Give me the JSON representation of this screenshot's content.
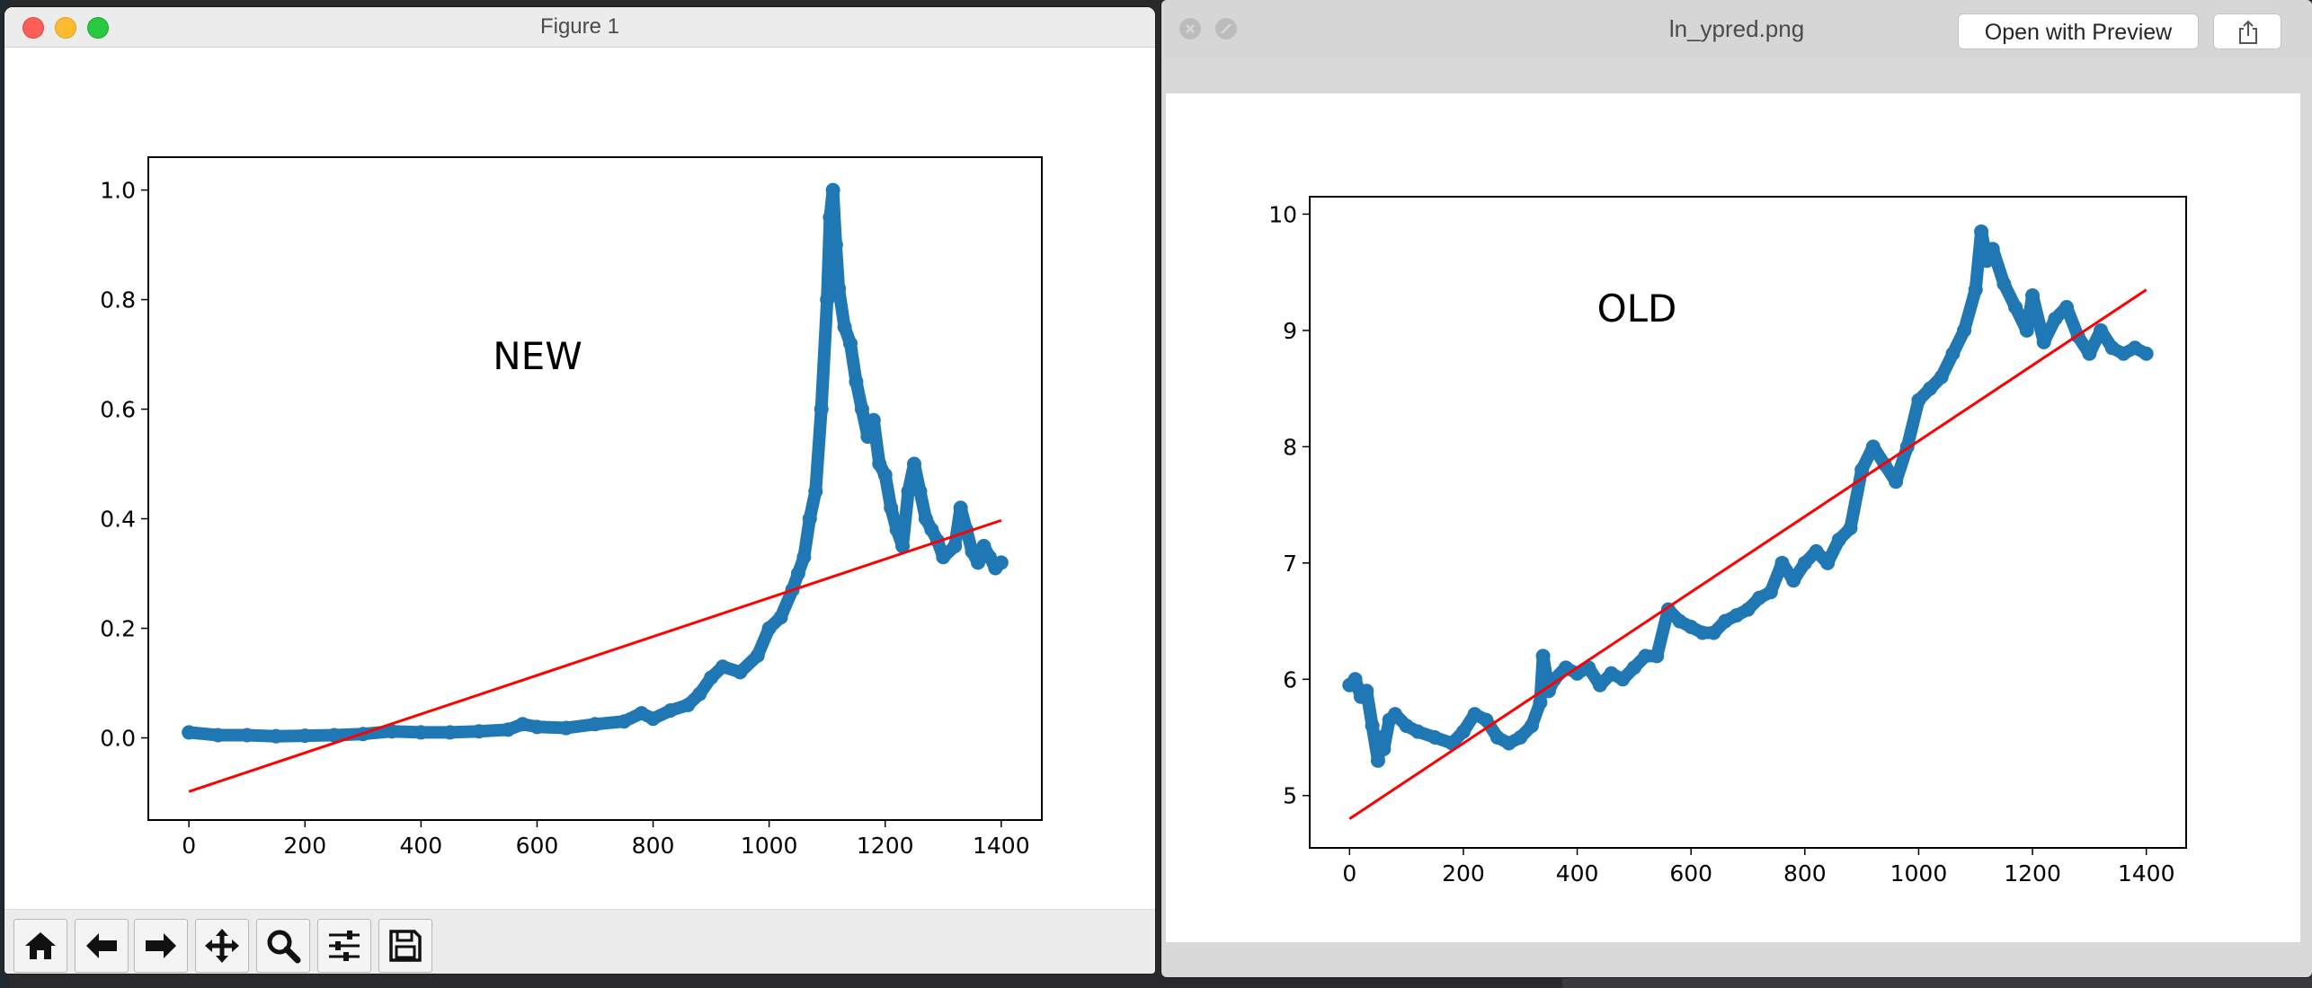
{
  "figure_window": {
    "title": "Figure 1",
    "toolbar": [
      {
        "name": "home-icon"
      },
      {
        "name": "back-arrow-icon"
      },
      {
        "name": "forward-arrow-icon"
      },
      {
        "name": "pan-icon"
      },
      {
        "name": "zoom-icon"
      },
      {
        "name": "subplots-icon"
      },
      {
        "name": "save-icon"
      }
    ]
  },
  "preview_window": {
    "title": "ln_ypred.png",
    "open_button": "Open with Preview",
    "share_icon": "share-icon"
  },
  "chart_data": [
    {
      "type": "scatter",
      "annotation": "NEW",
      "title": "",
      "xlabel": "",
      "ylabel": "",
      "xlim": [
        -70,
        1470
      ],
      "ylim": [
        -0.15,
        1.06
      ],
      "xticks": [
        0,
        200,
        400,
        600,
        800,
        1000,
        1200,
        1400
      ],
      "yticks": [
        0.0,
        0.2,
        0.4,
        0.6,
        0.8,
        1.0
      ],
      "xtick_labels": [
        "0",
        "200",
        "400",
        "600",
        "800",
        "1000",
        "1200",
        "1400"
      ],
      "ytick_labels": [
        "0.0",
        "0.2",
        "0.4",
        "0.6",
        "0.8",
        "1.0"
      ],
      "grid": false,
      "series": [
        {
          "kind": "scatter",
          "color": "#1f77b4",
          "x": [
            0,
            50,
            100,
            150,
            200,
            250,
            300,
            350,
            400,
            450,
            500,
            550,
            575,
            600,
            650,
            700,
            750,
            780,
            800,
            830,
            860,
            880,
            900,
            920,
            950,
            980,
            1000,
            1020,
            1040,
            1050,
            1060,
            1070,
            1080,
            1090,
            1100,
            1105,
            1110,
            1115,
            1120,
            1130,
            1140,
            1150,
            1160,
            1170,
            1180,
            1190,
            1200,
            1210,
            1220,
            1230,
            1240,
            1250,
            1260,
            1270,
            1280,
            1290,
            1300,
            1320,
            1330,
            1340,
            1350,
            1360,
            1370,
            1380,
            1390,
            1400
          ],
          "y": [
            0.01,
            0.005,
            0.005,
            0.003,
            0.004,
            0.005,
            0.007,
            0.012,
            0.01,
            0.01,
            0.012,
            0.015,
            0.025,
            0.02,
            0.018,
            0.025,
            0.03,
            0.045,
            0.035,
            0.05,
            0.06,
            0.08,
            0.11,
            0.13,
            0.12,
            0.15,
            0.2,
            0.22,
            0.27,
            0.3,
            0.33,
            0.4,
            0.45,
            0.6,
            0.8,
            0.95,
            1.0,
            0.9,
            0.82,
            0.75,
            0.72,
            0.65,
            0.6,
            0.55,
            0.58,
            0.5,
            0.48,
            0.42,
            0.38,
            0.35,
            0.45,
            0.5,
            0.45,
            0.4,
            0.38,
            0.36,
            0.33,
            0.35,
            0.42,
            0.38,
            0.34,
            0.32,
            0.35,
            0.33,
            0.31,
            0.32
          ]
        },
        {
          "kind": "line",
          "color": "#ff0000",
          "x": [
            0,
            1400
          ],
          "y": [
            -0.098,
            0.397
          ]
        }
      ]
    },
    {
      "type": "scatter",
      "annotation": "OLD",
      "title": "",
      "xlabel": "",
      "ylabel": "",
      "xlim": [
        -70,
        1470
      ],
      "ylim": [
        4.55,
        10.15
      ],
      "xticks": [
        0,
        200,
        400,
        600,
        800,
        1000,
        1200,
        1400
      ],
      "yticks": [
        5,
        6,
        7,
        8,
        9,
        10
      ],
      "xtick_labels": [
        "0",
        "200",
        "400",
        "600",
        "800",
        "1000",
        "1200",
        "1400"
      ],
      "ytick_labels": [
        "5",
        "6",
        "7",
        "8",
        "9",
        "10"
      ],
      "grid": false,
      "series": [
        {
          "kind": "scatter",
          "color": "#1f77b4",
          "x": [
            0,
            10,
            20,
            30,
            40,
            50,
            55,
            60,
            70,
            80,
            100,
            120,
            150,
            180,
            200,
            220,
            240,
            260,
            280,
            300,
            320,
            335,
            340,
            350,
            360,
            380,
            400,
            420,
            440,
            460,
            480,
            500,
            520,
            540,
            560,
            580,
            600,
            620,
            640,
            660,
            680,
            700,
            720,
            740,
            760,
            780,
            800,
            820,
            840,
            860,
            880,
            900,
            920,
            940,
            960,
            980,
            1000,
            1020,
            1040,
            1060,
            1080,
            1100,
            1110,
            1120,
            1130,
            1150,
            1170,
            1190,
            1200,
            1220,
            1240,
            1260,
            1280,
            1300,
            1320,
            1340,
            1360,
            1380,
            1400
          ],
          "y": [
            5.95,
            6.0,
            5.85,
            5.9,
            5.6,
            5.3,
            5.5,
            5.4,
            5.65,
            5.7,
            5.6,
            5.55,
            5.5,
            5.45,
            5.55,
            5.7,
            5.65,
            5.5,
            5.45,
            5.5,
            5.6,
            5.8,
            6.2,
            5.9,
            6.0,
            6.1,
            6.05,
            6.1,
            5.95,
            6.05,
            6.0,
            6.1,
            6.2,
            6.2,
            6.6,
            6.5,
            6.45,
            6.4,
            6.4,
            6.5,
            6.55,
            6.6,
            6.7,
            6.75,
            7.0,
            6.85,
            7.0,
            7.1,
            7.0,
            7.2,
            7.3,
            7.8,
            8.0,
            7.85,
            7.7,
            8.0,
            8.4,
            8.5,
            8.6,
            8.8,
            9.0,
            9.35,
            9.85,
            9.6,
            9.7,
            9.4,
            9.2,
            9.0,
            9.3,
            8.9,
            9.1,
            9.2,
            8.95,
            8.8,
            9.0,
            8.85,
            8.8,
            8.85,
            8.8
          ]
        },
        {
          "kind": "line",
          "color": "#ff0000",
          "x": [
            0,
            1400
          ],
          "y": [
            4.8,
            9.35
          ]
        }
      ]
    }
  ]
}
